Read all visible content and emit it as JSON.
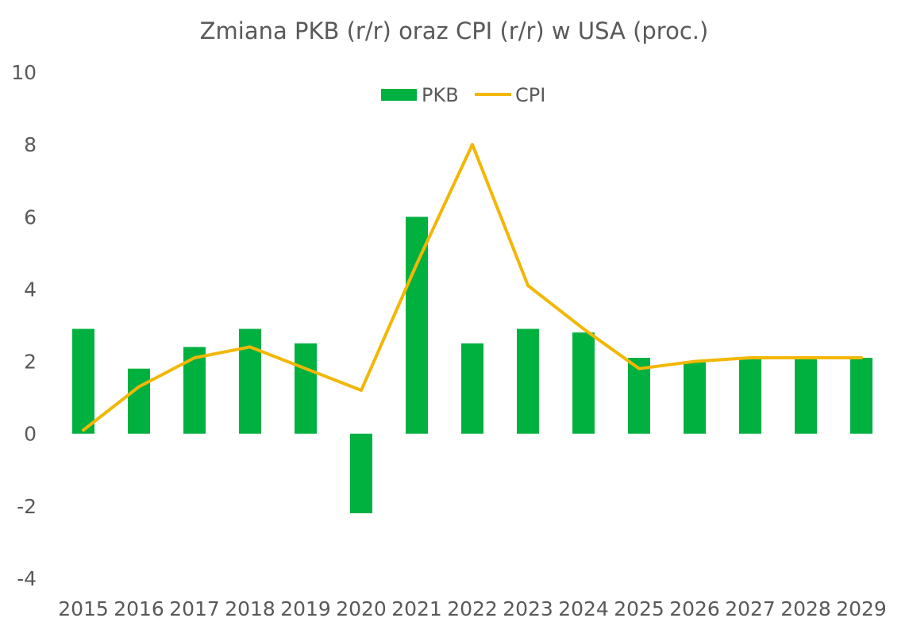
{
  "chart_data": {
    "type": "bar",
    "title": "Zmiana PKB (r/r) oraz CPI (r/r) w USA (proc.)",
    "categories": [
      "2015",
      "2016",
      "2017",
      "2018",
      "2019",
      "2020",
      "2021",
      "2022",
      "2023",
      "2024",
      "2025",
      "2026",
      "2027",
      "2028",
      "2029"
    ],
    "ylim": [
      -4,
      10
    ],
    "yticks": [
      "10",
      "8",
      "6",
      "4",
      "2",
      "0",
      "-2",
      "-4"
    ],
    "grid": false,
    "legend_position": "top-center",
    "series": [
      {
        "name": "PKB",
        "type": "bar",
        "color": "#00B140",
        "values": [
          2.9,
          1.8,
          2.4,
          2.9,
          2.5,
          -2.2,
          6.0,
          2.5,
          2.9,
          2.8,
          2.1,
          2.0,
          2.1,
          2.1,
          2.1
        ]
      },
      {
        "name": "CPI",
        "type": "line",
        "color": "#F2B705",
        "values": [
          0.1,
          1.3,
          2.1,
          2.4,
          1.8,
          1.2,
          4.7,
          8.0,
          4.1,
          2.9,
          1.8,
          2.0,
          2.1,
          2.1,
          2.1
        ]
      }
    ]
  }
}
